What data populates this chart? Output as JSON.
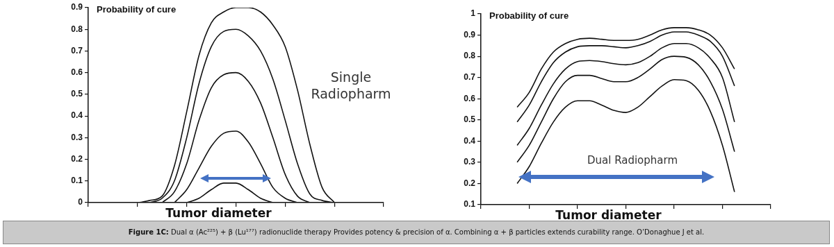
{
  "chart_data": [
    {
      "type": "line",
      "xlabel": "Tumor diameter",
      "ylabel": "Probability of cure",
      "tick_labels": "y",
      "marker": "none",
      "categories": [
        null,
        null,
        null,
        null,
        null,
        null,
        null,
        null,
        null,
        null,
        null,
        null,
        null,
        null,
        null,
        null,
        null,
        null,
        null,
        null,
        null,
        null,
        null,
        null,
        null
      ],
      "ylim": [
        0,
        0.9
      ],
      "yticks": [
        {
          "value": 0,
          "label": "0"
        },
        0.1,
        0.2,
        0.3,
        0.4,
        0.5,
        0.6,
        0.7,
        0.8,
        0.9
      ],
      "series": [
        {
          "color": "#111111",
          "values": [
            null,
            null,
            null,
            0,
            0,
            0.01,
            0.03,
            0.17,
            0.42,
            0.68,
            0.83,
            0.88,
            0.9,
            0.9,
            0.88,
            0.82,
            0.72,
            0.52,
            0.27,
            0.07,
            0,
            null,
            null,
            null,
            null
          ]
        },
        {
          "color": "#111111",
          "values": [
            null,
            null,
            null,
            null,
            null,
            0,
            0.02,
            0.1,
            0.3,
            0.55,
            0.72,
            0.79,
            0.8,
            0.77,
            0.7,
            0.57,
            0.38,
            0.18,
            0.04,
            0.01,
            0,
            null,
            null,
            null,
            null
          ]
        },
        {
          "color": "#111111",
          "values": [
            null,
            null,
            null,
            null,
            null,
            null,
            0,
            0.05,
            0.18,
            0.38,
            0.53,
            0.59,
            0.6,
            0.56,
            0.46,
            0.3,
            0.13,
            0.03,
            0,
            null,
            null,
            null,
            null,
            null,
            null
          ]
        },
        {
          "color": "#111111",
          "values": [
            null,
            null,
            null,
            null,
            null,
            null,
            null,
            0,
            0.06,
            0.16,
            0.26,
            0.32,
            0.33,
            0.28,
            0.18,
            0.07,
            0.02,
            0,
            null,
            null,
            null,
            null,
            null,
            null,
            null
          ]
        },
        {
          "color": "#111111",
          "values": [
            null,
            null,
            null,
            null,
            null,
            null,
            null,
            null,
            0,
            0.02,
            0.06,
            0.09,
            0.09,
            0.06,
            0.02,
            0,
            null,
            null,
            null,
            null,
            null,
            null,
            null,
            null,
            null
          ]
        }
      ],
      "annotations": [
        "Single Radiopharm",
        "Figure 1C: Dual α (Ac²²⁵) + β (Lu¹⁷⁷) radionuclide therapy Provides potency & precision of α. Combining α + β particles extends curability range.  O’Donaghue J et al."
      ]
    },
    {
      "type": "line",
      "xlabel": "Tumor diameter",
      "ylabel": "Probability of cure",
      "tick_labels": "y",
      "marker": "none",
      "categories": [
        null,
        null,
        null,
        null,
        null,
        null,
        null,
        null,
        null,
        null,
        null,
        null,
        null,
        null,
        null,
        null,
        null,
        null,
        null,
        null,
        null,
        null,
        null,
        null,
        null
      ],
      "ylim": [
        0.1,
        1
      ],
      "yticks": [
        0.1,
        0.2,
        0.3,
        0.4,
        0.5,
        0.6,
        0.7,
        0.8,
        0.9,
        1
      ],
      "series": [
        {
          "color": "#111111",
          "values": [
            null,
            null,
            null,
            0.56,
            0.63,
            0.74,
            0.82,
            0.86,
            0.88,
            0.885,
            0.88,
            0.875,
            0.875,
            0.88,
            0.9,
            0.925,
            0.935,
            0.935,
            0.925,
            0.9,
            0.84,
            0.74,
            null,
            null,
            null
          ]
        },
        {
          "color": "#111111",
          "values": [
            null,
            null,
            null,
            0.49,
            0.57,
            0.68,
            0.77,
            0.82,
            0.845,
            0.85,
            0.85,
            0.845,
            0.84,
            0.85,
            0.87,
            0.9,
            0.915,
            0.915,
            0.9,
            0.87,
            0.8,
            0.66,
            null,
            null,
            null
          ]
        },
        {
          "color": "#111111",
          "values": [
            null,
            null,
            null,
            0.38,
            0.46,
            0.57,
            0.67,
            0.74,
            0.775,
            0.78,
            0.775,
            0.765,
            0.76,
            0.77,
            0.8,
            0.84,
            0.86,
            0.86,
            0.84,
            0.79,
            0.7,
            0.49,
            null,
            null,
            null
          ]
        },
        {
          "color": "#111111",
          "values": [
            null,
            null,
            null,
            0.3,
            0.38,
            0.49,
            0.6,
            0.68,
            0.71,
            0.71,
            0.695,
            0.68,
            0.68,
            0.7,
            0.74,
            0.785,
            0.8,
            0.795,
            0.76,
            0.68,
            0.55,
            0.35,
            null,
            null,
            null
          ]
        },
        {
          "color": "#111111",
          "values": [
            null,
            null,
            null,
            0.2,
            0.28,
            0.39,
            0.49,
            0.56,
            0.59,
            0.59,
            0.57,
            0.545,
            0.535,
            0.56,
            0.61,
            0.66,
            0.69,
            0.685,
            0.64,
            0.54,
            0.38,
            0.16,
            null,
            null,
            null
          ]
        }
      ],
      "annotations": [
        "Dual Radiopharm"
      ]
    }
  ]
}
